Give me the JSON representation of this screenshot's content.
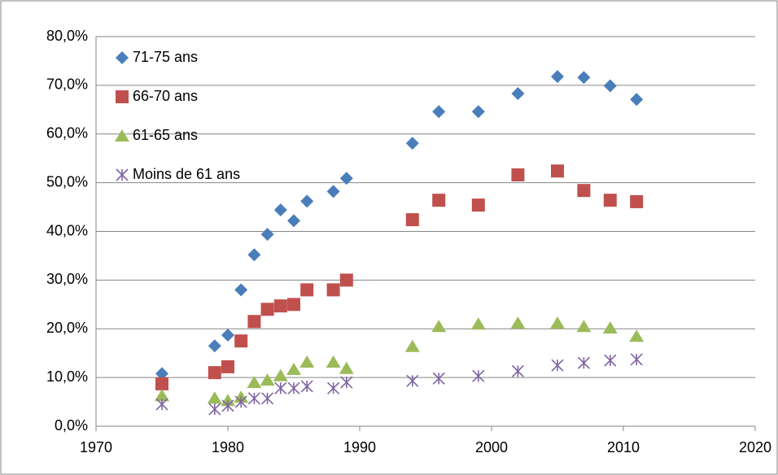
{
  "chart_data": {
    "type": "scatter",
    "x": [
      1975,
      1979,
      1980,
      1981,
      1982,
      1983,
      1984,
      1985,
      1986,
      1988,
      1989,
      1994,
      1996,
      1999,
      2002,
      2005,
      2007,
      2009,
      2011
    ],
    "series": [
      {
        "name": "71-75 ans",
        "color": "#4a7ebb",
        "marker": "diamond",
        "values": [
          10.8,
          16.5,
          18.7,
          28.0,
          35.2,
          39.4,
          44.4,
          42.2,
          46.2,
          48.2,
          50.9,
          58.1,
          64.6,
          64.6,
          68.3,
          71.8,
          71.6,
          69.9,
          67.1
        ]
      },
      {
        "name": "66-70 ans",
        "color": "#c0504d",
        "marker": "square",
        "values": [
          8.7,
          11.0,
          12.2,
          17.5,
          21.5,
          24.0,
          24.7,
          25.0,
          28.0,
          28.0,
          30.0,
          42.4,
          46.4,
          45.4,
          51.6,
          52.4,
          48.4,
          46.4,
          46.1
        ]
      },
      {
        "name": "61-65 ans",
        "color": "#9bbb59",
        "marker": "triangle",
        "values": [
          6.3,
          5.8,
          5.3,
          6.0,
          9.0,
          9.5,
          10.4,
          11.7,
          13.2,
          13.2,
          11.9,
          16.4,
          20.5,
          21.0,
          21.2,
          21.2,
          20.5,
          20.2,
          18.5
        ]
      },
      {
        "name": "Moins de 61 ans",
        "color": "#8064a2",
        "marker": "star",
        "values": [
          4.5,
          3.5,
          4.2,
          5.0,
          5.7,
          5.7,
          7.8,
          7.8,
          8.2,
          7.8,
          9.0,
          9.3,
          9.8,
          10.3,
          11.3,
          12.5,
          13.0,
          13.5,
          13.7
        ]
      }
    ],
    "xlim": [
      1970,
      2020
    ],
    "xticks": [
      1970,
      1980,
      1990,
      2000,
      2010,
      2020
    ],
    "ylim": [
      0,
      80
    ],
    "yticks": [
      {
        "value": 0,
        "label": "0,0%"
      },
      {
        "value": 10,
        "label": "10,0%"
      },
      {
        "value": 20,
        "label": "20,0%"
      },
      {
        "value": 30,
        "label": "30,0%"
      },
      {
        "value": 40,
        "label": "40,0%"
      },
      {
        "value": 50,
        "label": "50,0%"
      },
      {
        "value": 60,
        "label": "60,0%"
      },
      {
        "value": 70,
        "label": "70,0%"
      },
      {
        "value": 80,
        "label": "80,0%"
      }
    ],
    "grid": true,
    "legend": "top-left"
  }
}
